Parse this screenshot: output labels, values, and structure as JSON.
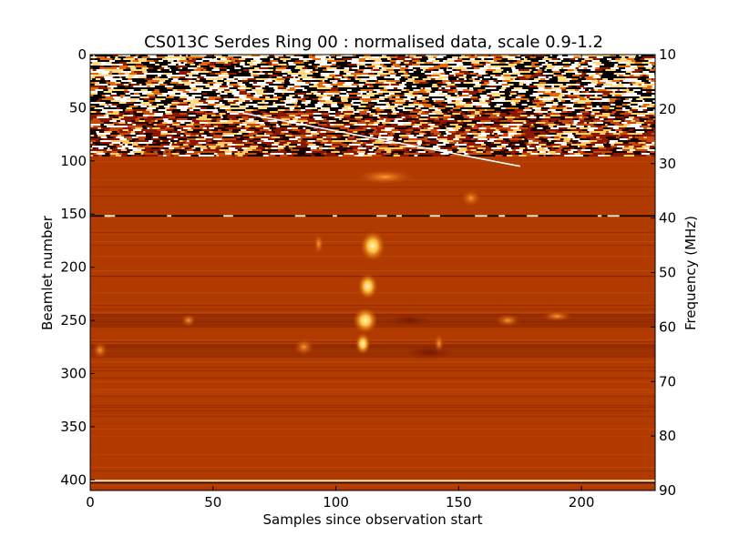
{
  "chart_data": {
    "type": "heatmap",
    "title": "CS013C Serdes Ring 00 : normalised data, scale 0.9-1.2",
    "xlabel": "Samples since observation start",
    "ylabel": "Beamlet number",
    "y2label": "Frequency (MHz)",
    "xlim": [
      0,
      230
    ],
    "ylim": [
      410,
      0
    ],
    "y2lim": [
      90,
      10
    ],
    "colormap": "gist_heat",
    "colorscale": [
      0.9,
      1.2
    ],
    "x_ticks": [
      0,
      50,
      100,
      150,
      200
    ],
    "x_tick_labels": [
      "0",
      "50",
      "100",
      "150",
      "200"
    ],
    "y_ticks": [
      0,
      50,
      100,
      150,
      200,
      250,
      300,
      350,
      400
    ],
    "y_tick_labels": [
      "0",
      "50",
      "100",
      "150",
      "200",
      "250",
      "300",
      "350",
      "400"
    ],
    "y2_ticks": [
      10,
      20,
      30,
      40,
      50,
      60,
      70,
      80,
      90
    ],
    "y2_tick_labels": [
      "10",
      "20",
      "30",
      "40",
      "50",
      "60",
      "70",
      "80",
      "90"
    ],
    "regions": [
      {
        "name": "noisy-band",
        "beamlet_range": [
          0,
          95
        ],
        "level": "saturated"
      },
      {
        "name": "background",
        "beamlet_range": [
          95,
          410
        ],
        "level": 1.0
      }
    ],
    "features": [
      {
        "name": "sweeping-line",
        "x": [
          62,
          175
        ],
        "beamlet": [
          55,
          105
        ]
      },
      {
        "name": "burst",
        "x": 115,
        "beamlet": [
          110,
          300
        ]
      }
    ]
  },
  "colors": {
    "background": "#b03a00",
    "noise_dark": "#000000",
    "noise_bright": "#ffffff",
    "burst": "#ffd060"
  }
}
